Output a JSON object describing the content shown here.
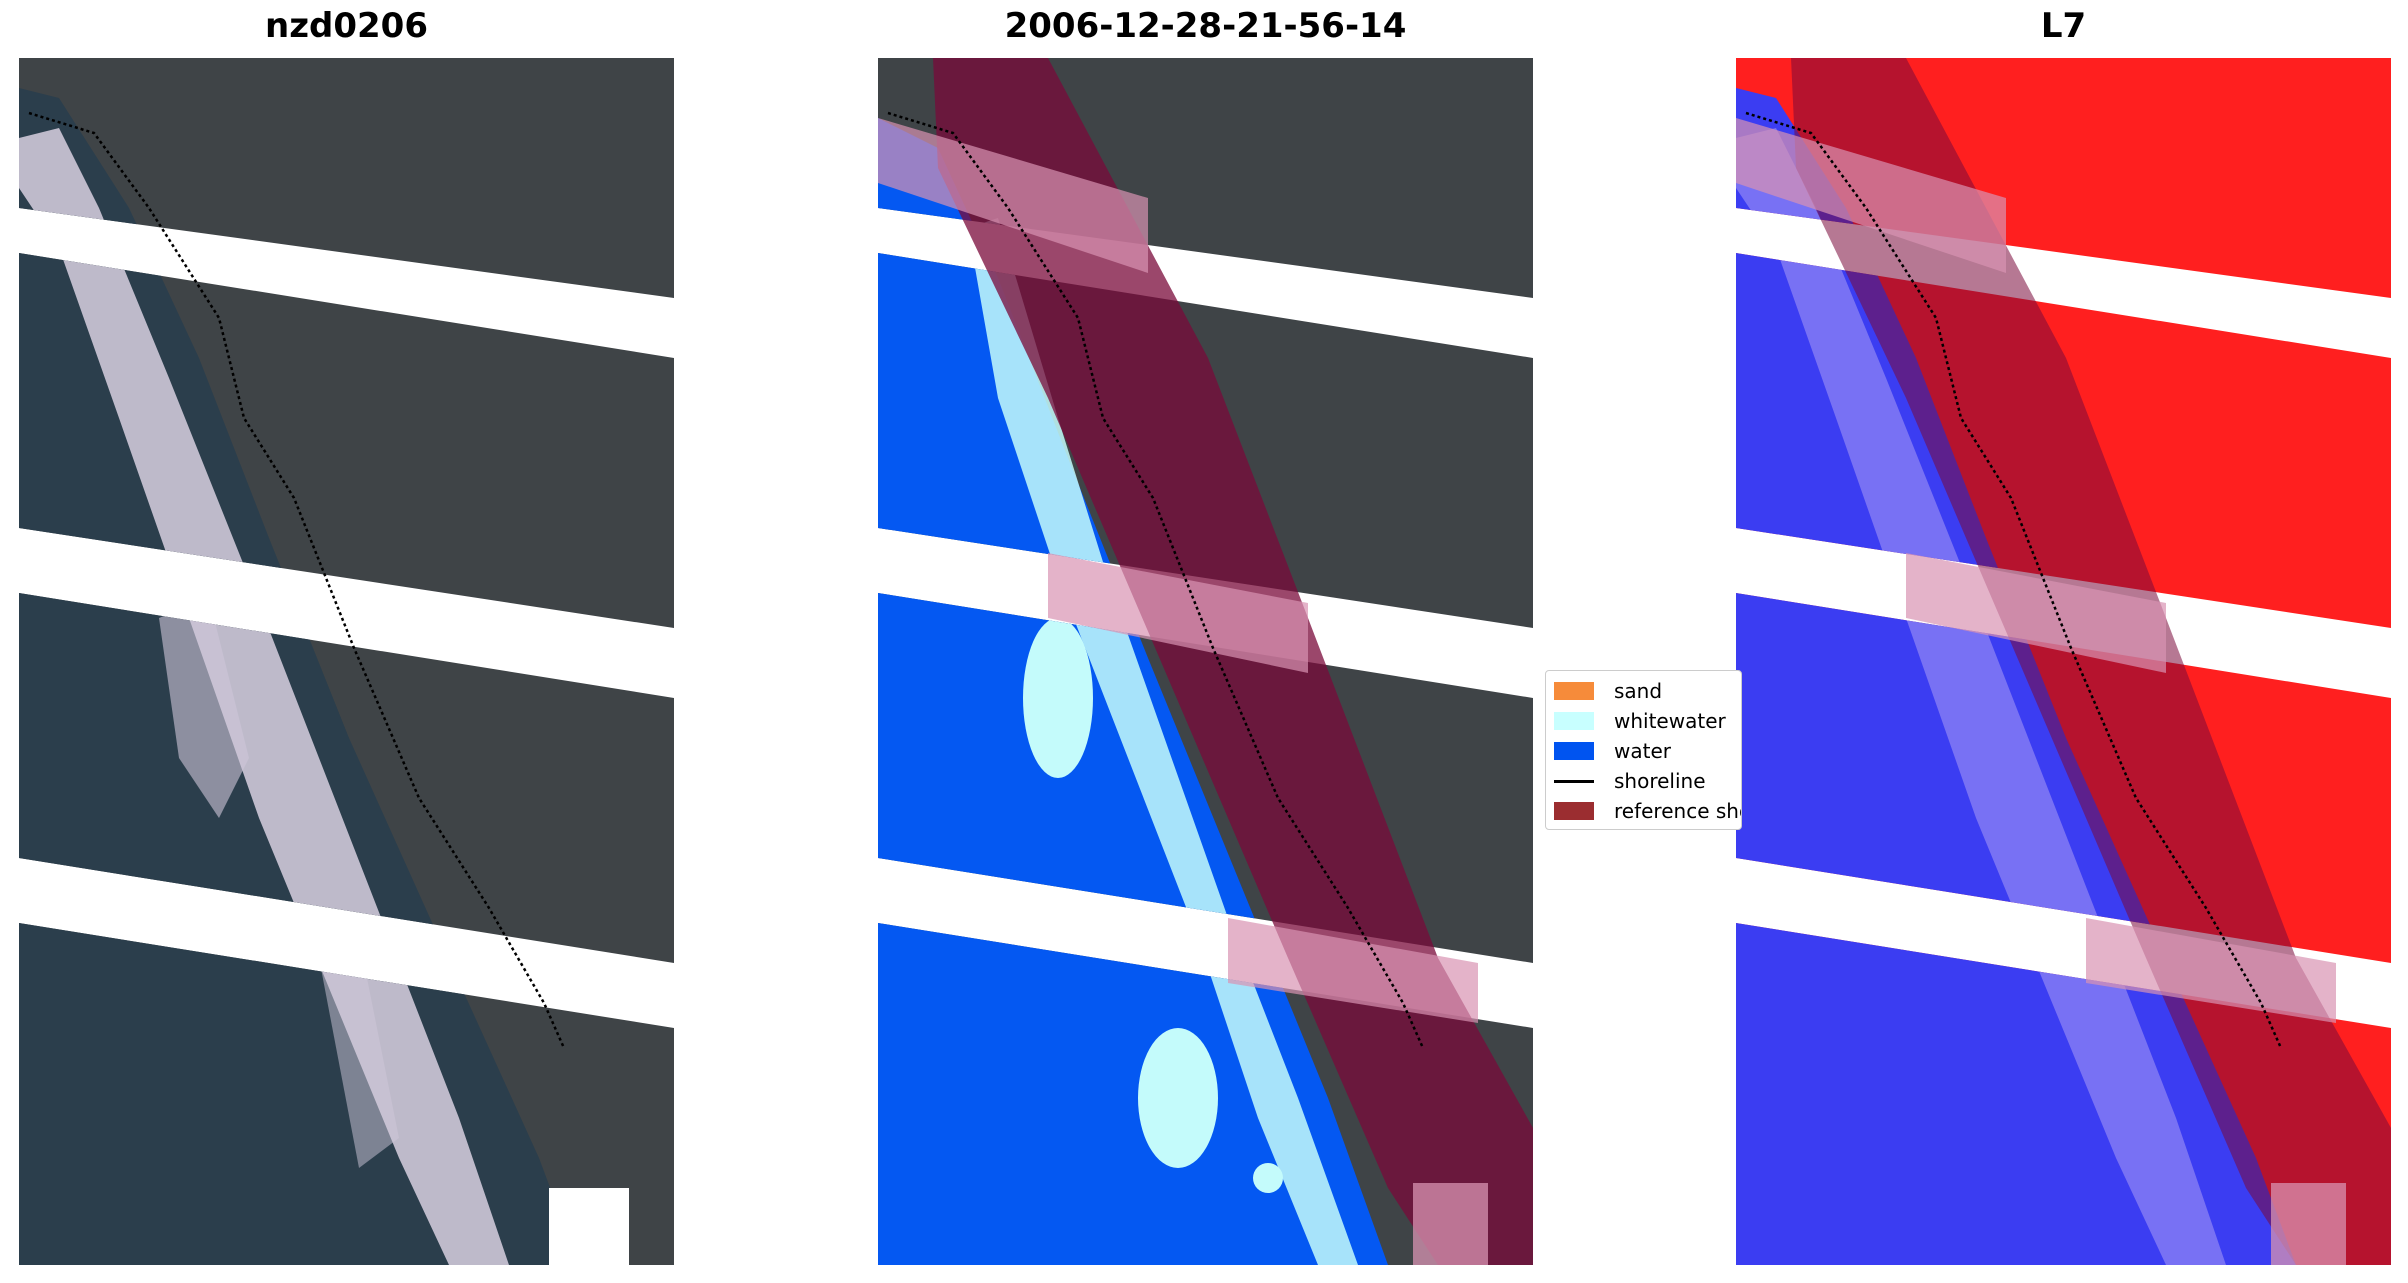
{
  "panels": {
    "left": {
      "title": "nzd0206"
    },
    "middle": {
      "title": "2006-12-28-21-56-14"
    },
    "right": {
      "title": "L7"
    }
  },
  "legend": {
    "items": [
      {
        "label": "sand",
        "kind": "patch",
        "color": "#f68b3a"
      },
      {
        "label": "whitewater",
        "kind": "patch",
        "color": "#c8ffff"
      },
      {
        "label": "water",
        "kind": "patch",
        "color": "#0054f0"
      },
      {
        "label": "shoreline",
        "kind": "line",
        "color": "#000000"
      },
      {
        "label": "reference shoreline buffer",
        "kind": "patch",
        "color": "#9b2d30"
      }
    ]
  },
  "colors": {
    "land": "#3d4446",
    "sea": "#2a3d4c",
    "surf": "#d9d4e3",
    "water_class": "#0458f2",
    "whitewater_class": "#c4fbfb",
    "buffer": "#7a0a3a",
    "ndwi_water": "#3b3df2",
    "ndwi_land": "#ff1f1f"
  }
}
